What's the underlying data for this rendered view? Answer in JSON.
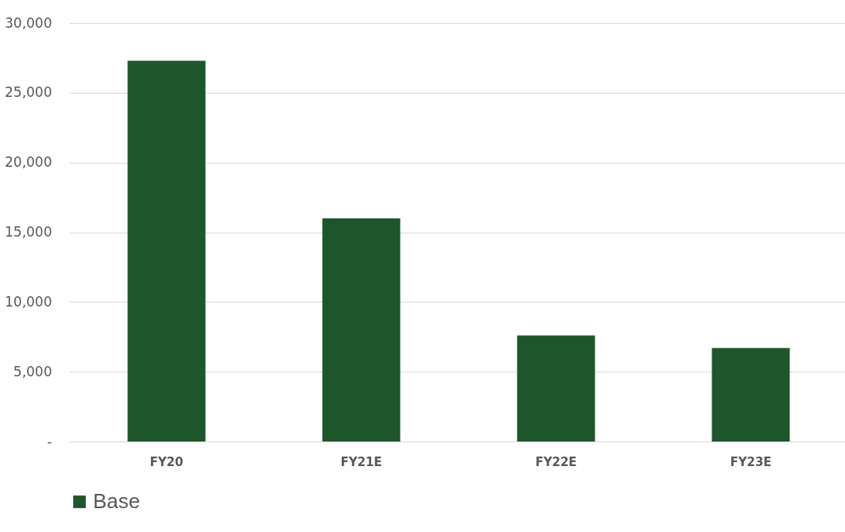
{
  "chart_data": {
    "type": "bar",
    "categories": [
      "FY20",
      "FY21E",
      "FY22E",
      "FY23E"
    ],
    "series": [
      {
        "name": "Base",
        "color": "#1e562b",
        "values": [
          27300,
          16000,
          7600,
          6700
        ]
      }
    ],
    "ylim": [
      0,
      30000
    ],
    "yticks": [
      {
        "value": 0,
        "label": "-"
      },
      {
        "value": 5000,
        "label": "5,000"
      },
      {
        "value": 10000,
        "label": "10,000"
      },
      {
        "value": 15000,
        "label": "15,000"
      },
      {
        "value": 20000,
        "label": "20,000"
      },
      {
        "value": 25000,
        "label": "25,000"
      },
      {
        "value": 30000,
        "label": "30,000"
      }
    ],
    "grid": "y",
    "legend": "bottom"
  }
}
